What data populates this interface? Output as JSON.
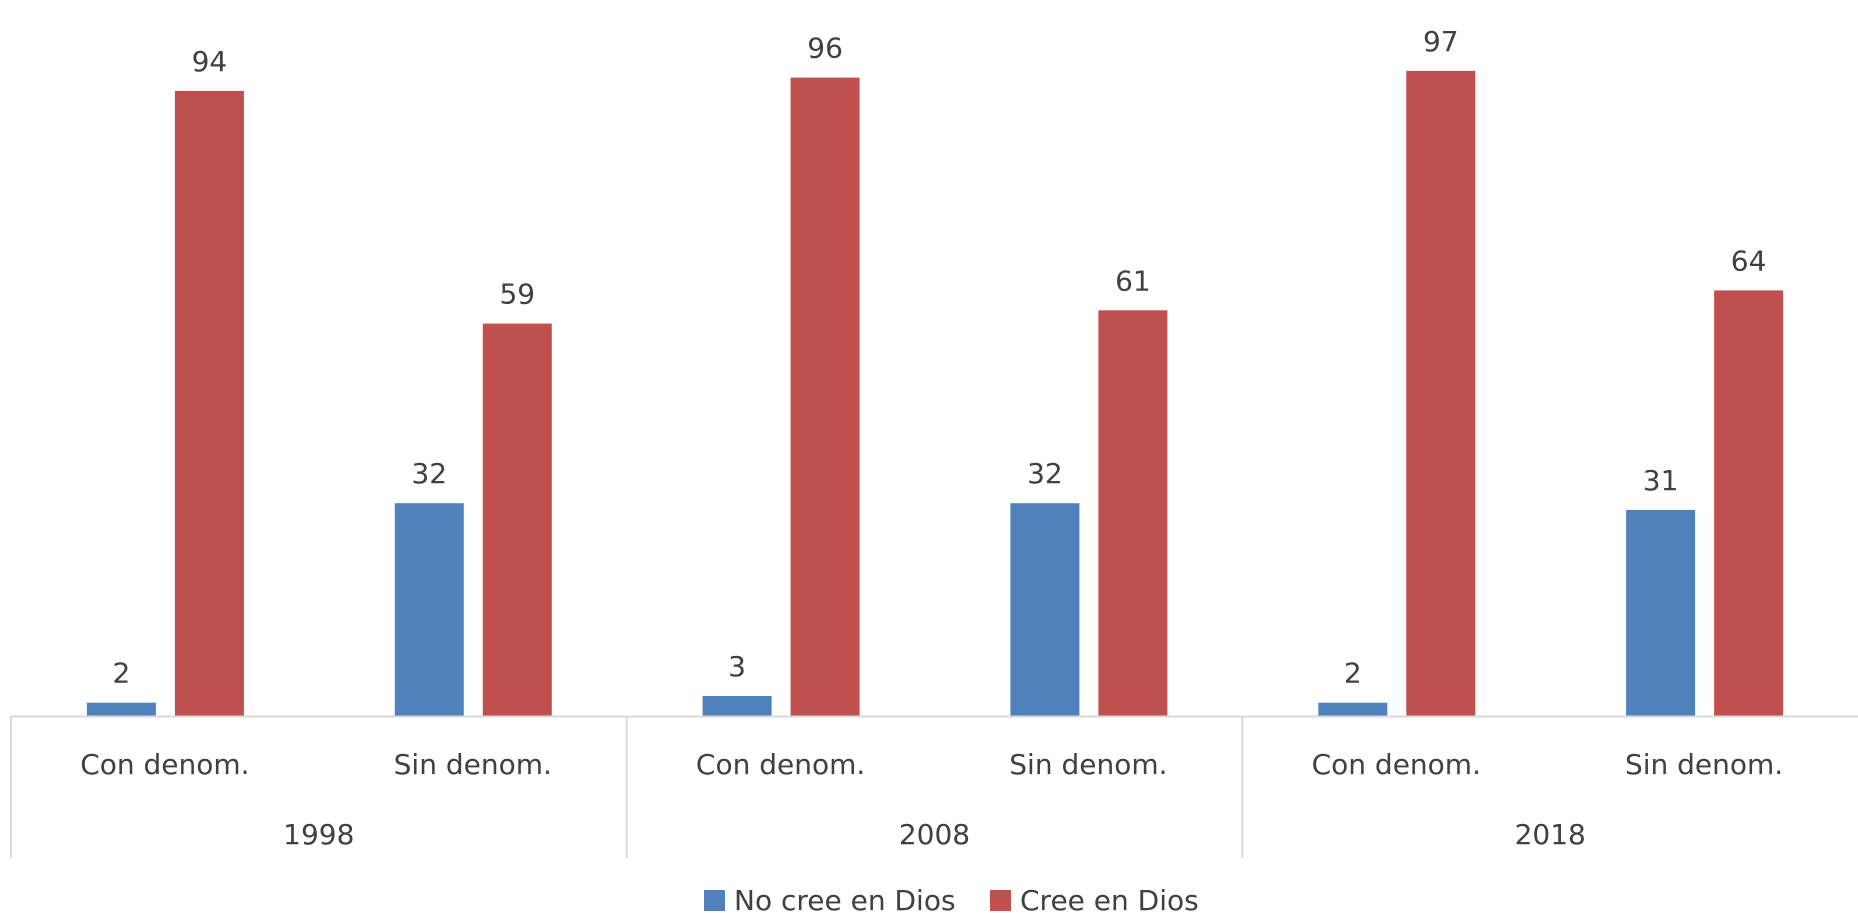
{
  "chart_data": {
    "type": "bar",
    "groups": [
      {
        "label": "1998",
        "categories": [
          "Con denom.",
          "Sin denom."
        ]
      },
      {
        "label": "2008",
        "categories": [
          "Con denom.",
          "Sin denom."
        ]
      },
      {
        "label": "2018",
        "categories": [
          "Con denom.",
          "Sin denom."
        ]
      }
    ],
    "categories": [
      "Con denom.",
      "Sin denom.",
      "Con denom.",
      "Sin denom.",
      "Con denom.",
      "Sin denom."
    ],
    "series": [
      {
        "name": "No cree en Dios",
        "color": "#4F81BD",
        "values": [
          2,
          32,
          3,
          32,
          2,
          31
        ]
      },
      {
        "name": "Cree en Dios",
        "color": "#C0504D",
        "values": [
          94,
          59,
          96,
          61,
          97,
          64
        ]
      }
    ],
    "ylim": [
      0,
      100
    ],
    "grid": false,
    "legend": "bottom-center",
    "data_labels": true
  }
}
